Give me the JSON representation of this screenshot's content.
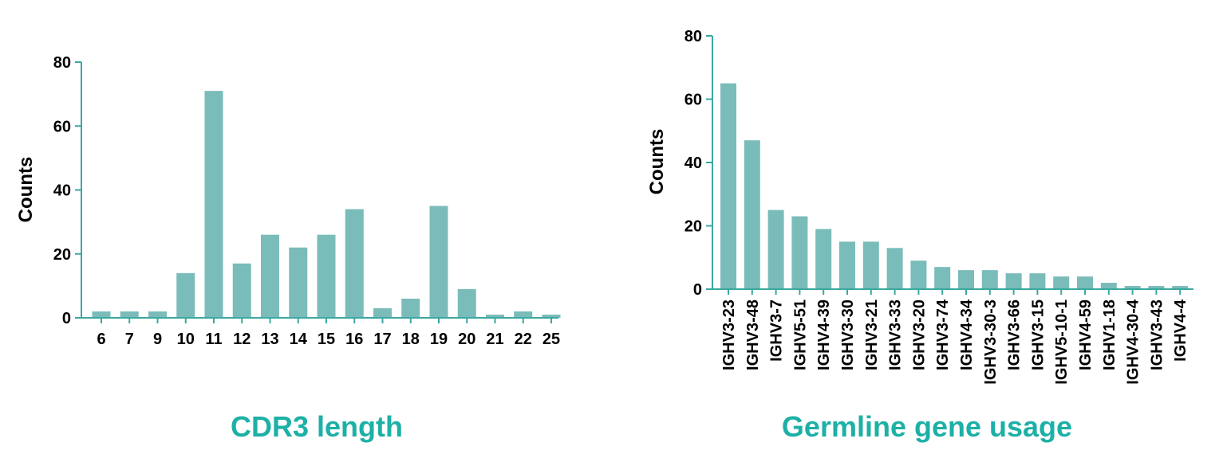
{
  "chart_data": [
    {
      "type": "bar",
      "title": "CDR3 length",
      "xlabel": "",
      "ylabel": "Counts",
      "ylim": [
        0,
        80
      ],
      "yticks": [
        0,
        20,
        40,
        60,
        80
      ],
      "categories": [
        "6",
        "7",
        "9",
        "10",
        "11",
        "12",
        "13",
        "14",
        "15",
        "16",
        "17",
        "18",
        "19",
        "20",
        "21",
        "22",
        "25"
      ],
      "values": [
        2,
        2,
        2,
        14,
        71,
        17,
        26,
        22,
        26,
        34,
        3,
        6,
        35,
        9,
        1,
        2,
        1
      ],
      "grid": false,
      "bar_color": "#7abcba",
      "axis_color": "#3aa8a0"
    },
    {
      "type": "bar",
      "title": "Germline gene usage",
      "xlabel": "",
      "ylabel": "Counts",
      "ylim": [
        0,
        80
      ],
      "yticks": [
        0,
        20,
        40,
        60,
        80
      ],
      "categories": [
        "IGHV3-23",
        "IGHV3-48",
        "IGHV3-7",
        "IGHV5-51",
        "IGHV4-39",
        "IGHV3-30",
        "IGHV3-21",
        "IGHV3-33",
        "IGHV3-20",
        "IGHV3-74",
        "IGHV4-34",
        "IGHV3-30-3",
        "IGHV3-66",
        "IGHV3-15",
        "IGHV5-10-1",
        "IGHV4-59",
        "IGHV1-18",
        "IGHV4-30-4",
        "IGHV3-43",
        "IGHV4-4"
      ],
      "values": [
        65,
        47,
        25,
        23,
        19,
        15,
        15,
        13,
        9,
        7,
        6,
        6,
        5,
        5,
        4,
        4,
        2,
        1,
        1,
        1
      ],
      "grid": false,
      "bar_color": "#7abcba",
      "axis_color": "#3aa8a0"
    }
  ]
}
